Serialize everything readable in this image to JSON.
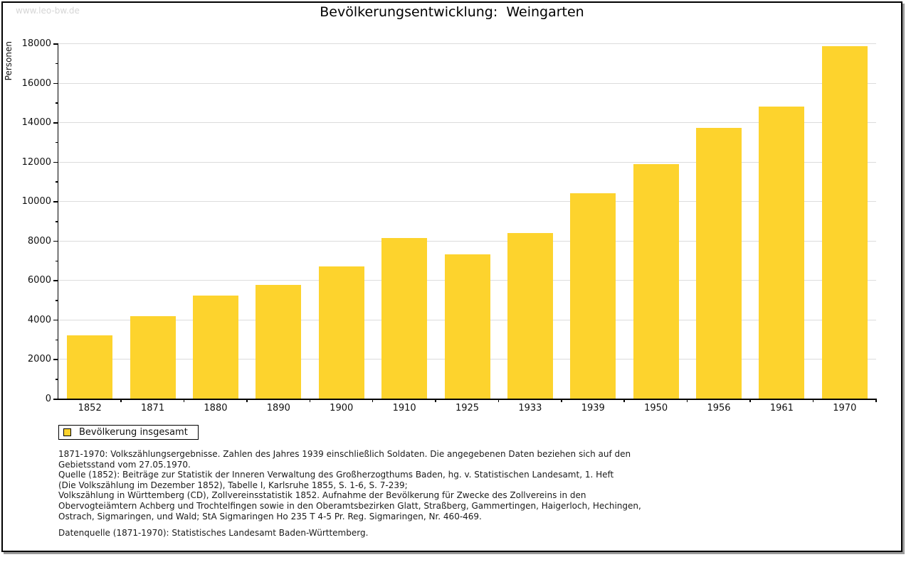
{
  "watermark": "www.leo-bw.de",
  "title": "Bevölkerungsentwicklung:  Weingarten",
  "legend": {
    "label": "Bevölkerung insgesamt"
  },
  "chart_data": {
    "type": "bar",
    "title": "Bevölkerungsentwicklung: Weingarten",
    "categories": [
      "1852",
      "1871",
      "1880",
      "1890",
      "1900",
      "1910",
      "1925",
      "1933",
      "1939",
      "1950",
      "1956",
      "1961",
      "1970"
    ],
    "values": [
      3200,
      4180,
      5230,
      5760,
      6700,
      8130,
      7300,
      8390,
      10400,
      11890,
      13720,
      14800,
      17850
    ],
    "series_name": "Bevölkerung insgesamt",
    "xlabel": "",
    "ylabel": "Personen",
    "ylim": [
      0,
      18000
    ],
    "ytick_step": 2000,
    "yminor_step": 1000,
    "grid": true,
    "bar_color": "#FDD32D",
    "legend_position": "bottom-left"
  },
  "notes": {
    "lines": [
      "1871-1970: Volkszählungsergebnisse. Zahlen des Jahres 1939 einschließlich Soldaten. Die angegebenen Daten beziehen sich auf den",
      "Gebietsstand vom 27.05.1970.",
      "Quelle (1852): Beiträge zur Statistik der Inneren Verwaltung des Großherzogthums Baden, hg. v. Statistischen Landesamt, 1. Heft",
      "(Die Volkszählung im Dezember 1852), Tabelle I, Karlsruhe 1855, S. 1-6, S. 7-239;",
      "Volkszählung in Württemberg (CD), Zollvereinsstatistik 1852. Aufnahme der Bevölkerung für Zwecke des Zollvereins in den",
      "Obervogteiämtern Achberg und Trochtelfingen sowie in den Oberamtsbezirken Glatt, Straßberg, Gammertingen, Haigerloch, Hechingen,",
      "Ostrach, Sigmaringen, und Wald; StA Sigmaringen Ho 235 T 4-5 Pr. Reg. Sigmaringen, Nr. 460-469."
    ]
  },
  "datasource": "Datenquelle (1871-1970): Statistisches Landesamt Baden-Württemberg."
}
